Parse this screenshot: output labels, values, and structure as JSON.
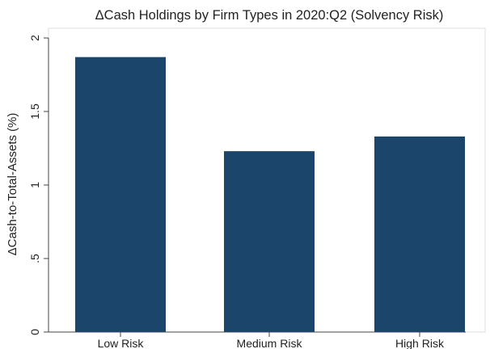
{
  "chart_data": {
    "type": "bar",
    "title": "ΔCash Holdings by Firm Types in 2020:Q2 (Solvency Risk)",
    "xlabel": "",
    "ylabel": "ΔCash-to-Total-Assets (%)",
    "categories": [
      "Low Risk",
      "Medium Risk",
      "High Risk"
    ],
    "values": [
      1.87,
      1.23,
      1.33
    ],
    "ylim": [
      0,
      2
    ],
    "yticks": [
      0,
      0.5,
      1,
      1.5,
      2
    ],
    "ytick_labels": [
      "0",
      ".5",
      "1",
      "1.5",
      "2"
    ],
    "grid": false,
    "legend": "none",
    "bar_color": "#1c456b"
  }
}
